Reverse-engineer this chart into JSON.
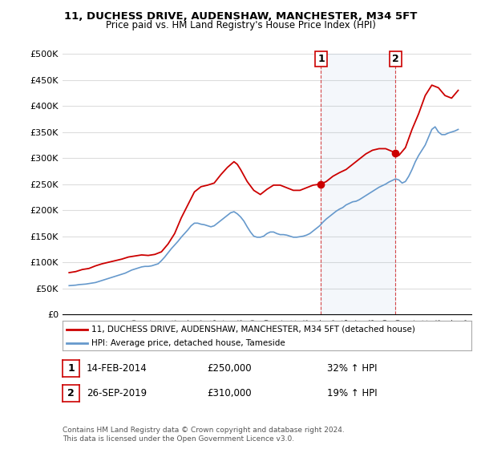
{
  "title": "11, DUCHESS DRIVE, AUDENSHAW, MANCHESTER, M34 5FT",
  "subtitle": "Price paid vs. HM Land Registry's House Price Index (HPI)",
  "legend_line1": "11, DUCHESS DRIVE, AUDENSHAW, MANCHESTER, M34 5FT (detached house)",
  "legend_line2": "HPI: Average price, detached house, Tameside",
  "annotation1_label": "1",
  "annotation1_date": "14-FEB-2014",
  "annotation1_price": "£250,000",
  "annotation1_hpi": "32% ↑ HPI",
  "annotation2_label": "2",
  "annotation2_date": "26-SEP-2019",
  "annotation2_price": "£310,000",
  "annotation2_hpi": "19% ↑ HPI",
  "footer": "Contains HM Land Registry data © Crown copyright and database right 2024.\nThis data is licensed under the Open Government Licence v3.0.",
  "red_color": "#cc0000",
  "blue_color": "#6699cc",
  "vline_color": "#cc0000",
  "annotation_box_color": "#cc0000",
  "background_color": "#ffffff",
  "grid_color": "#dddddd",
  "ylim": [
    0,
    500000
  ],
  "yticks": [
    0,
    50000,
    100000,
    150000,
    200000,
    250000,
    300000,
    350000,
    400000,
    450000,
    500000
  ],
  "ytick_labels": [
    "£0",
    "£50K",
    "£100K",
    "£150K",
    "£200K",
    "£250K",
    "£300K",
    "£350K",
    "£400K",
    "£450K",
    "£500K"
  ],
  "xlim_start": 1994.5,
  "xlim_end": 2025.5,
  "xticks": [
    1995,
    1996,
    1997,
    1998,
    1999,
    2000,
    2001,
    2002,
    2003,
    2004,
    2005,
    2006,
    2007,
    2008,
    2009,
    2010,
    2011,
    2012,
    2013,
    2014,
    2015,
    2016,
    2017,
    2018,
    2019,
    2020,
    2021,
    2022,
    2023,
    2024,
    2025
  ],
  "vline1_x": 2014.1,
  "vline2_x": 2019.75,
  "marker1_x": 2014.1,
  "marker1_y": 250000,
  "marker2_x": 2019.75,
  "marker2_y": 310000,
  "hpi_data": {
    "x": [
      1995.0,
      1995.25,
      1995.5,
      1995.75,
      1996.0,
      1996.25,
      1996.5,
      1996.75,
      1997.0,
      1997.25,
      1997.5,
      1997.75,
      1998.0,
      1998.25,
      1998.5,
      1998.75,
      1999.0,
      1999.25,
      1999.5,
      1999.75,
      2000.0,
      2000.25,
      2000.5,
      2000.75,
      2001.0,
      2001.25,
      2001.5,
      2001.75,
      2002.0,
      2002.25,
      2002.5,
      2002.75,
      2003.0,
      2003.25,
      2003.5,
      2003.75,
      2004.0,
      2004.25,
      2004.5,
      2004.75,
      2005.0,
      2005.25,
      2005.5,
      2005.75,
      2006.0,
      2006.25,
      2006.5,
      2006.75,
      2007.0,
      2007.25,
      2007.5,
      2007.75,
      2008.0,
      2008.25,
      2008.5,
      2008.75,
      2009.0,
      2009.25,
      2009.5,
      2009.75,
      2010.0,
      2010.25,
      2010.5,
      2010.75,
      2011.0,
      2011.25,
      2011.5,
      2011.75,
      2012.0,
      2012.25,
      2012.5,
      2012.75,
      2013.0,
      2013.25,
      2013.5,
      2013.75,
      2014.0,
      2014.25,
      2014.5,
      2014.75,
      2015.0,
      2015.25,
      2015.5,
      2015.75,
      2016.0,
      2016.25,
      2016.5,
      2016.75,
      2017.0,
      2017.25,
      2017.5,
      2017.75,
      2018.0,
      2018.25,
      2018.5,
      2018.75,
      2019.0,
      2019.25,
      2019.5,
      2019.75,
      2020.0,
      2020.25,
      2020.5,
      2020.75,
      2021.0,
      2021.25,
      2021.5,
      2021.75,
      2022.0,
      2022.25,
      2022.5,
      2022.75,
      2023.0,
      2023.25,
      2023.5,
      2023.75,
      2024.0,
      2024.25,
      2024.5
    ],
    "y": [
      55000,
      55500,
      56000,
      57000,
      57500,
      58000,
      59000,
      60000,
      61000,
      63000,
      65000,
      67000,
      69000,
      71000,
      73000,
      75000,
      77000,
      79000,
      82000,
      85000,
      87000,
      89000,
      91000,
      92000,
      92000,
      93000,
      95000,
      97000,
      103000,
      110000,
      118000,
      126000,
      133000,
      140000,
      148000,
      155000,
      162000,
      170000,
      175000,
      175000,
      173000,
      172000,
      170000,
      168000,
      170000,
      175000,
      180000,
      185000,
      190000,
      195000,
      197000,
      193000,
      187000,
      179000,
      168000,
      158000,
      150000,
      148000,
      148000,
      150000,
      155000,
      158000,
      158000,
      155000,
      153000,
      153000,
      152000,
      150000,
      148000,
      148000,
      149000,
      150000,
      152000,
      155000,
      160000,
      165000,
      170000,
      177000,
      183000,
      188000,
      193000,
      198000,
      202000,
      205000,
      210000,
      213000,
      216000,
      217000,
      220000,
      224000,
      228000,
      232000,
      236000,
      240000,
      244000,
      247000,
      250000,
      254000,
      257000,
      260000,
      258000,
      252000,
      255000,
      265000,
      278000,
      293000,
      305000,
      315000,
      325000,
      340000,
      355000,
      360000,
      350000,
      345000,
      345000,
      348000,
      350000,
      352000,
      355000
    ]
  },
  "price_data": {
    "x": [
      1995.0,
      1995.5,
      1996.0,
      1996.5,
      1997.0,
      1997.5,
      1998.0,
      1998.5,
      1999.0,
      1999.5,
      2000.0,
      2000.5,
      2001.0,
      2001.5,
      2002.0,
      2002.5,
      2003.0,
      2003.5,
      2004.0,
      2004.5,
      2005.0,
      2005.5,
      2006.0,
      2006.5,
      2007.0,
      2007.5,
      2007.75,
      2008.0,
      2008.5,
      2009.0,
      2009.5,
      2010.0,
      2010.5,
      2011.0,
      2011.5,
      2012.0,
      2012.5,
      2013.0,
      2013.5,
      2014.1,
      2014.5,
      2015.0,
      2015.5,
      2016.0,
      2016.5,
      2017.0,
      2017.5,
      2018.0,
      2018.5,
      2019.0,
      2019.75,
      2020.0,
      2020.5,
      2021.0,
      2021.5,
      2022.0,
      2022.5,
      2023.0,
      2023.5,
      2024.0,
      2024.5
    ],
    "y": [
      80000,
      82000,
      86000,
      88000,
      93000,
      97000,
      100000,
      103000,
      106000,
      110000,
      112000,
      114000,
      113000,
      115000,
      120000,
      135000,
      155000,
      185000,
      210000,
      235000,
      245000,
      248000,
      252000,
      268000,
      282000,
      293000,
      288000,
      278000,
      255000,
      238000,
      230000,
      240000,
      248000,
      248000,
      243000,
      238000,
      238000,
      243000,
      248000,
      250000,
      255000,
      265000,
      272000,
      278000,
      288000,
      298000,
      308000,
      315000,
      318000,
      318000,
      310000,
      305000,
      320000,
      355000,
      385000,
      420000,
      440000,
      435000,
      420000,
      415000,
      430000
    ]
  }
}
